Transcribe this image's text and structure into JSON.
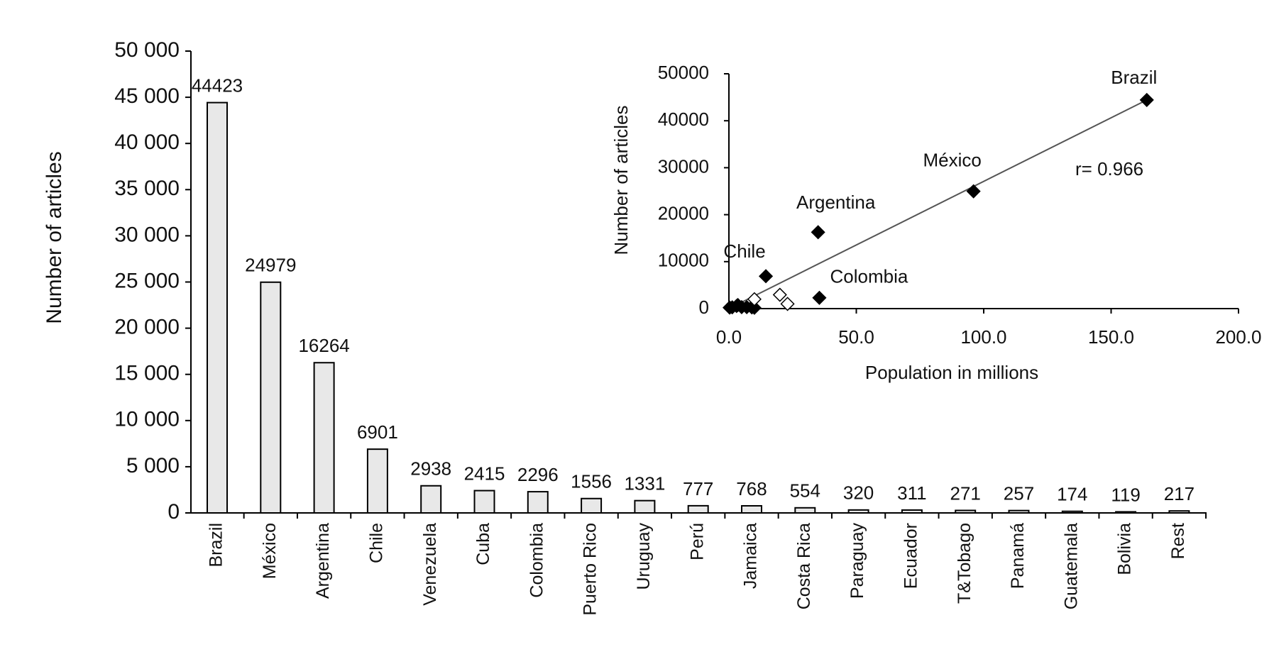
{
  "chart_data": [
    {
      "type": "bar",
      "ylabel": "Number of articles",
      "categories": [
        "Brazil",
        "México",
        "Argentina",
        "Chile",
        "Venezuela",
        "Cuba",
        "Colombia",
        "Puerto Rico",
        "Uruguay",
        "Perú",
        "Jamaica",
        "Costa Rica",
        "Paraguay",
        "Ecuador",
        "T&Tobago",
        "Panamá",
        "Guatemala",
        "Bolivia",
        "Rest"
      ],
      "values": [
        44423,
        24979,
        16264,
        6901,
        2938,
        2415,
        2296,
        1556,
        1331,
        777,
        768,
        554,
        320,
        311,
        271,
        257,
        174,
        119,
        217
      ],
      "color": "#e8e8e8",
      "ylim": [
        0,
        50000
      ],
      "yticks": [
        0,
        {
          "value": 5000,
          "label": "5 000"
        },
        {
          "value": 10000,
          "label": "10 000"
        },
        {
          "value": 15000,
          "label": "15 000"
        },
        {
          "value": 20000,
          "label": "20 000"
        },
        {
          "value": 25000,
          "label": "25 000"
        },
        {
          "value": 30000,
          "label": "30 000"
        },
        {
          "value": 35000,
          "label": "35 000"
        },
        {
          "value": 40000,
          "label": "40 000"
        },
        {
          "value": 45000,
          "label": "45 000"
        },
        {
          "value": 50000,
          "label": "50 000"
        }
      ]
    },
    {
      "type": "scatter",
      "xlabel": "Population in millions",
      "ylabel": "Number of articles",
      "annotation": "r= 0.966",
      "series": [
        {
          "marker": "filled",
          "color": "#000000",
          "x": [
            164,
            96,
            35,
            14.5,
            35.5,
            0.3,
            1.3,
            3,
            3.5,
            5,
            7,
            9,
            10
          ],
          "y": [
            44423,
            24979,
            16264,
            6901,
            2296,
            217,
            271,
            554,
            768,
            320,
            311,
            257,
            174
          ],
          "labels": [
            "Brazil",
            "México",
            "Argentina",
            "Chile",
            "Colombia",
            null,
            null,
            null,
            null,
            null,
            null,
            null,
            null
          ]
        },
        {
          "marker": "open",
          "color": "#000000",
          "x": [
            10,
            20,
            23
          ],
          "y": [
            2000,
            2938,
            1000
          ]
        }
      ],
      "trendline": {
        "x": [
          0,
          165
        ],
        "y": [
          0,
          44700
        ]
      },
      "xlim": [
        0,
        200
      ],
      "xticks": [
        {
          "value": 0,
          "label": "0.0"
        },
        {
          "value": 50,
          "label": "50.0"
        },
        {
          "value": 100,
          "label": "100.0"
        },
        {
          "value": 150,
          "label": "150.0"
        },
        {
          "value": 200,
          "label": "200.0"
        }
      ],
      "ylim": [
        0,
        50000
      ],
      "yticks": [
        0,
        10000,
        20000,
        30000,
        40000,
        50000
      ]
    }
  ]
}
